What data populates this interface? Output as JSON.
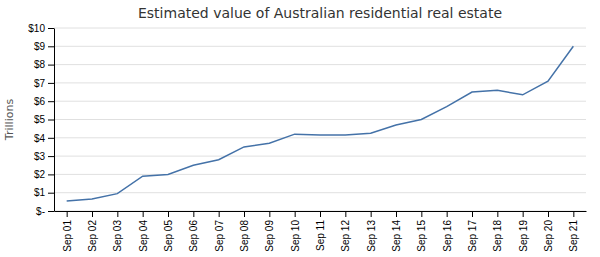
{
  "chart_data": {
    "type": "line",
    "title": "Estimated value of Australian residential real estate",
    "ylabel": "Trillions",
    "categories": [
      "Sep 01",
      "Sep 02",
      "Sep 03",
      "Sep 04",
      "Sep 05",
      "Sep 06",
      "Sep 07",
      "Sep 08",
      "Sep 09",
      "Sep 10",
      "Sep 11",
      "Sep 12",
      "Sep 13",
      "Sep 14",
      "Sep 15",
      "Sep 16",
      "Sep 17",
      "Sep 18",
      "Sep 19",
      "Sep 20",
      "Sep 21"
    ],
    "values": [
      0.55,
      0.65,
      0.95,
      1.9,
      2.0,
      2.5,
      2.8,
      3.5,
      3.7,
      4.2,
      4.15,
      4.15,
      4.25,
      4.7,
      5.0,
      5.7,
      6.5,
      6.6,
      6.35,
      7.1,
      9.0
    ],
    "color": "#4472a8",
    "ylim": [
      0,
      10
    ],
    "yticks": [
      {
        "value": 0,
        "label": "$-"
      },
      {
        "value": 1,
        "label": "$1"
      },
      {
        "value": 2,
        "label": "$2"
      },
      {
        "value": 3,
        "label": "$3"
      },
      {
        "value": 4,
        "label": "$4"
      },
      {
        "value": 5,
        "label": "$5"
      },
      {
        "value": 6,
        "label": "$6"
      },
      {
        "value": 7,
        "label": "$7"
      },
      {
        "value": 8,
        "label": "$8"
      },
      {
        "value": 9,
        "label": "$9"
      },
      {
        "value": 10,
        "label": "$10"
      }
    ],
    "grid": true
  }
}
